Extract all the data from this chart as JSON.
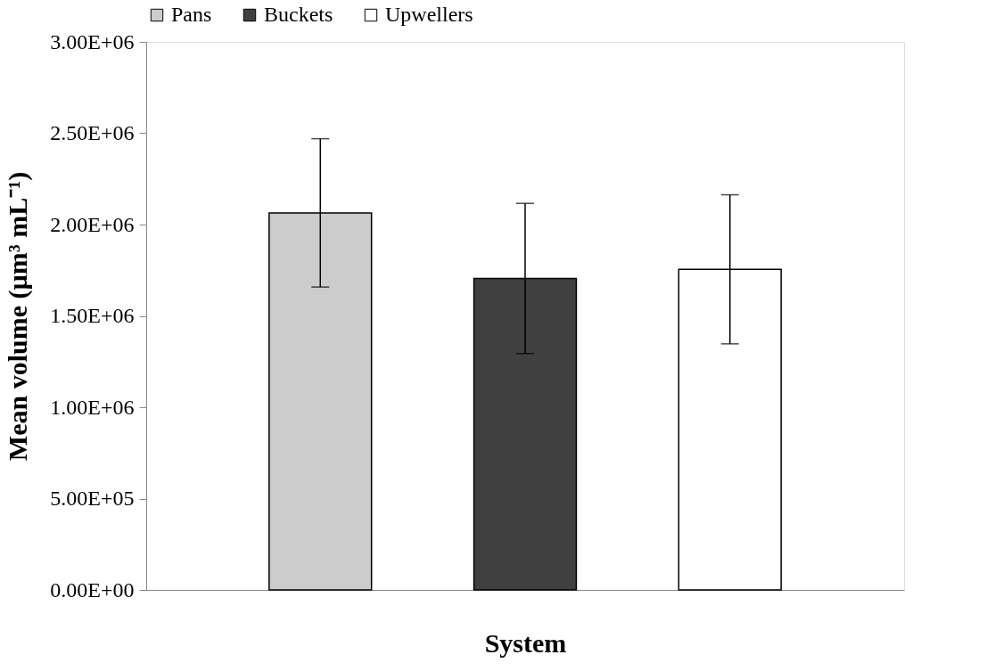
{
  "chart_data": {
    "type": "bar",
    "xlabel": "System",
    "ylabel": "Mean volume (µm³ mL⁻¹)",
    "categories": [
      null
    ],
    "series": [
      {
        "name": "Pans",
        "color": "#cccccc",
        "values": [
          2064000
        ],
        "errors": [
          406000
        ]
      },
      {
        "name": "Buckets",
        "color": "#404040",
        "values": [
          1705000
        ],
        "errors": [
          411000
        ]
      },
      {
        "name": "Upwellers",
        "color": "#ffffff",
        "values": [
          1755000
        ],
        "errors": [
          408000
        ]
      }
    ],
    "ylim": [
      0,
      3000000
    ],
    "yticks": [
      {
        "value": 0,
        "label": "0.00E+00"
      },
      {
        "value": 500000,
        "label": "5.00E+05"
      },
      {
        "value": 1000000,
        "label": "1.00E+06"
      },
      {
        "value": 1500000,
        "label": "1.50E+06"
      },
      {
        "value": 2000000,
        "label": "2.00E+06"
      },
      {
        "value": 2500000,
        "label": "2.50E+06"
      },
      {
        "value": 3000000,
        "label": "3.00E+06"
      }
    ],
    "grid": false,
    "legend": "top"
  }
}
